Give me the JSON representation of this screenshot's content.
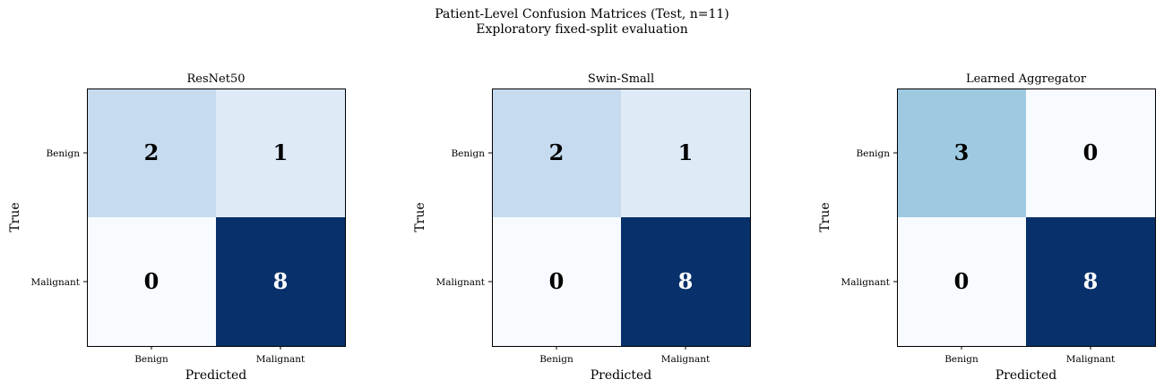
{
  "figure": {
    "title": "Patient-Level Confusion Matrices (Test, n=11)",
    "subtitle": "Exploratory fixed-split evaluation"
  },
  "colormap": {
    "name": "Blues",
    "low_color": "#f7fbff",
    "high_color": "#08306b"
  },
  "chart_data": [
    {
      "type": "heatmap",
      "title": "ResNet50",
      "xlabel": "Predicted",
      "ylabel": "True",
      "x_categories": [
        "Benign",
        "Malignant"
      ],
      "y_categories": [
        "Benign",
        "Malignant"
      ],
      "matrix": [
        [
          2,
          1
        ],
        [
          0,
          8
        ]
      ],
      "vmin": 0,
      "vmax": 8
    },
    {
      "type": "heatmap",
      "title": "Swin-Small",
      "xlabel": "Predicted",
      "ylabel": "True",
      "x_categories": [
        "Benign",
        "Malignant"
      ],
      "y_categories": [
        "Benign",
        "Malignant"
      ],
      "matrix": [
        [
          2,
          1
        ],
        [
          0,
          8
        ]
      ],
      "vmin": 0,
      "vmax": 8
    },
    {
      "type": "heatmap",
      "title": "Learned Aggregator",
      "xlabel": "Predicted",
      "ylabel": "True",
      "x_categories": [
        "Benign",
        "Malignant"
      ],
      "y_categories": [
        "Benign",
        "Malignant"
      ],
      "matrix": [
        [
          3,
          0
        ],
        [
          0,
          8
        ]
      ],
      "vmin": 0,
      "vmax": 8
    }
  ]
}
